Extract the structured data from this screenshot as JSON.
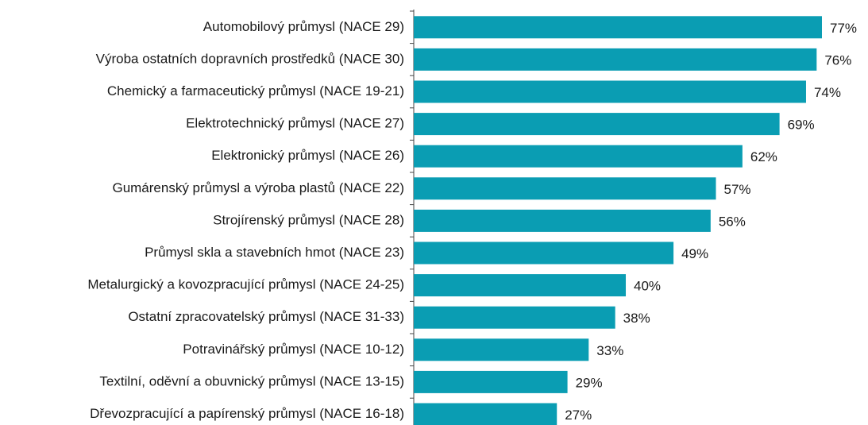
{
  "chart_data": {
    "type": "barh",
    "color": "#0a9db3",
    "categories": [
      "Automobilový průmysl (NACE 29)",
      "Výroba ostatních dopravních prostředků (NACE 30)",
      "Chemický a farmaceutický průmysl (NACE 19-21)",
      "Elektrotechnický průmysl (NACE 27)",
      "Elektronický průmysl (NACE 26)",
      "Gumárenský průmysl a výroba plastů (NACE 22)",
      "Strojírenský průmysl (NACE 28)",
      "Průmysl skla a stavebních hmot (NACE 23)",
      "Metalurgický a kovozpracující průmysl (NACE 24-25)",
      "Ostatní zpracovatelský průmysl (NACE 31-33)",
      "Potravinářský průmysl (NACE 10-12)",
      "Textilní, oděvní a obuvnický průmysl (NACE 13-15)",
      "Dřevozpracující a papírenský průmysl (NACE 16-18)"
    ],
    "values": [
      77,
      76,
      74,
      69,
      62,
      57,
      56,
      49,
      40,
      38,
      33,
      29,
      27
    ],
    "value_labels": [
      "77%",
      "76%",
      "74%",
      "69%",
      "62%",
      "57%",
      "56%",
      "49%",
      "40%",
      "38%",
      "33%",
      "29%",
      "27%"
    ]
  }
}
